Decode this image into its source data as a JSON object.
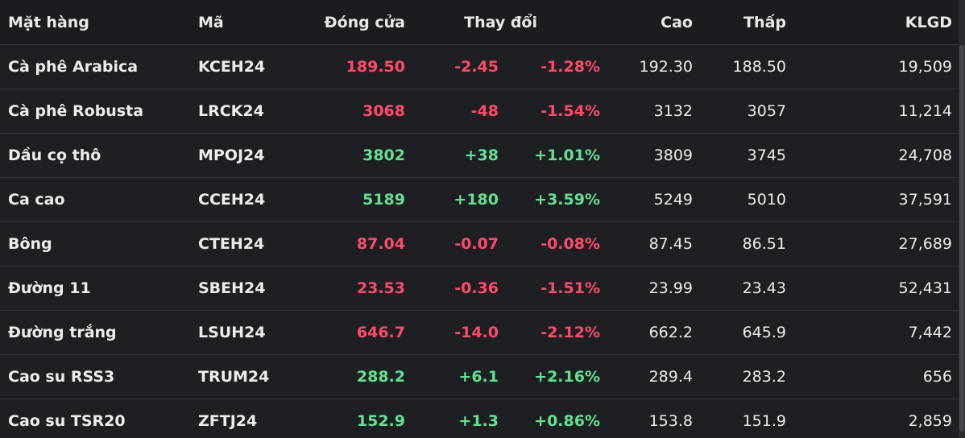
{
  "colors": {
    "up": "#5fe38f",
    "down": "#ff4a67",
    "background": "#1e1f23"
  },
  "header": {
    "name": "Mặt hàng",
    "code": "Mã",
    "close": "Đóng cửa",
    "change": "Thay đổi",
    "high": "Cao",
    "low": "Thấp",
    "volume": "KLGD"
  },
  "rows": [
    {
      "name": "Cà phê Arabica",
      "code": "KCEH24",
      "close": "189.50",
      "change": "-2.45",
      "pct": "-1.28%",
      "high": "192.30",
      "low": "188.50",
      "volume": "19,509",
      "direction": "down"
    },
    {
      "name": "Cà phê Robusta",
      "code": "LRCK24",
      "close": "3068",
      "change": "-48",
      "pct": "-1.54%",
      "high": "3132",
      "low": "3057",
      "volume": "11,214",
      "direction": "down"
    },
    {
      "name": "Dầu cọ thô",
      "code": "MPOJ24",
      "close": "3802",
      "change": "+38",
      "pct": "+1.01%",
      "high": "3809",
      "low": "3745",
      "volume": "24,708",
      "direction": "up"
    },
    {
      "name": "Ca cao",
      "code": "CCEH24",
      "close": "5189",
      "change": "+180",
      "pct": "+3.59%",
      "high": "5249",
      "low": "5010",
      "volume": "37,591",
      "direction": "up"
    },
    {
      "name": "Bông",
      "code": "CTEH24",
      "close": "87.04",
      "change": "-0.07",
      "pct": "-0.08%",
      "high": "87.45",
      "low": "86.51",
      "volume": "27,689",
      "direction": "down"
    },
    {
      "name": "Đường 11",
      "code": "SBEH24",
      "close": "23.53",
      "change": "-0.36",
      "pct": "-1.51%",
      "high": "23.99",
      "low": "23.43",
      "volume": "52,431",
      "direction": "down"
    },
    {
      "name": "Đường trắng",
      "code": "LSUH24",
      "close": "646.7",
      "change": "-14.0",
      "pct": "-2.12%",
      "high": "662.2",
      "low": "645.9",
      "volume": "7,442",
      "direction": "down"
    },
    {
      "name": "Cao su RSS3",
      "code": "TRUM24",
      "close": "288.2",
      "change": "+6.1",
      "pct": "+2.16%",
      "high": "289.4",
      "low": "283.2",
      "volume": "656",
      "direction": "up"
    },
    {
      "name": "Cao su TSR20",
      "code": "ZFTJ24",
      "close": "152.9",
      "change": "+1.3",
      "pct": "+0.86%",
      "high": "153.8",
      "low": "151.9",
      "volume": "2,859",
      "direction": "up"
    }
  ]
}
